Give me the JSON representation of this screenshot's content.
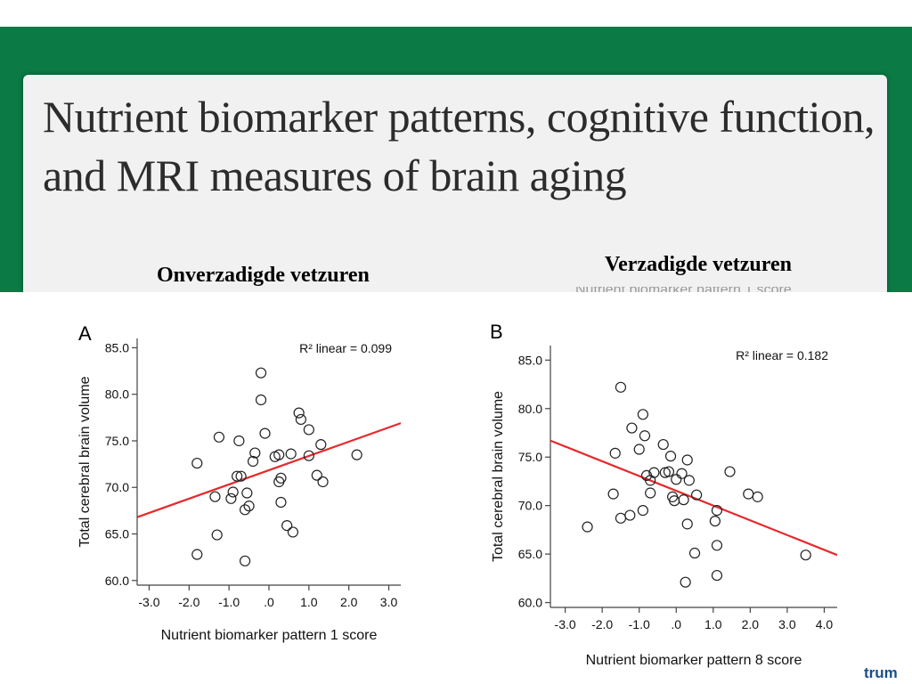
{
  "slide": {
    "title": "Nutrient biomarker patterns, cognitive function, and MRI measures of brain aging",
    "subtitle_left": "Onverzadigde vetzuren",
    "subtitle_right": "Verzadigde vetzuren",
    "ghost_caption": "Nutrient biomarker pattern 1 score",
    "footer_text": "trum"
  },
  "colors": {
    "band": "#0c7a45",
    "regression": "#e8272a",
    "footer": "#1b4e8a"
  },
  "chart_data": [
    {
      "type": "scatter",
      "panel_label": "A",
      "r2_text": "R² linear = 0.099",
      "xlabel": "Nutrient biomarker pattern 1 score",
      "ylabel": "Total cerebral brain volume",
      "xlim": [
        -3.3,
        3.3
      ],
      "ylim": [
        59.5,
        86
      ],
      "x_ticks": [
        -3,
        -2,
        -1,
        0,
        1,
        2,
        3
      ],
      "x_tick_labels": [
        "-3.0",
        "-2.0",
        "-1.0",
        ".0",
        "1.0",
        "2.0",
        "3.0"
      ],
      "y_ticks": [
        60,
        65,
        70,
        75,
        80,
        85
      ],
      "y_tick_labels": [
        "60.0",
        "65.0",
        "70.0",
        "75.0",
        "80.0",
        "85.0"
      ],
      "regression": {
        "x": [
          -3.3,
          3.3
        ],
        "y": [
          66.8,
          76.9
        ]
      },
      "points": [
        {
          "x": -1.8,
          "y": 72.6
        },
        {
          "x": -1.8,
          "y": 62.8
        },
        {
          "x": -1.35,
          "y": 69.0
        },
        {
          "x": -1.25,
          "y": 75.4
        },
        {
          "x": -1.3,
          "y": 64.9
        },
        {
          "x": -0.9,
          "y": 69.5
        },
        {
          "x": -0.95,
          "y": 68.8
        },
        {
          "x": -0.8,
          "y": 71.2
        },
        {
          "x": -0.7,
          "y": 71.2
        },
        {
          "x": -0.75,
          "y": 75.0
        },
        {
          "x": -0.6,
          "y": 67.6
        },
        {
          "x": -0.55,
          "y": 69.4
        },
        {
          "x": -0.5,
          "y": 68.0
        },
        {
          "x": -0.6,
          "y": 62.1
        },
        {
          "x": -0.4,
          "y": 72.8
        },
        {
          "x": -0.35,
          "y": 73.7
        },
        {
          "x": -0.2,
          "y": 82.3
        },
        {
          "x": -0.2,
          "y": 79.4
        },
        {
          "x": -0.1,
          "y": 75.8
        },
        {
          "x": 0.15,
          "y": 73.3
        },
        {
          "x": 0.25,
          "y": 73.5
        },
        {
          "x": 0.3,
          "y": 71.0
        },
        {
          "x": 0.25,
          "y": 70.6
        },
        {
          "x": 0.3,
          "y": 68.4
        },
        {
          "x": 0.45,
          "y": 65.9
        },
        {
          "x": 0.6,
          "y": 65.2
        },
        {
          "x": 0.55,
          "y": 73.6
        },
        {
          "x": 0.75,
          "y": 78.0
        },
        {
          "x": 0.8,
          "y": 77.3
        },
        {
          "x": 1.0,
          "y": 76.2
        },
        {
          "x": 1.0,
          "y": 73.4
        },
        {
          "x": 1.2,
          "y": 71.3
        },
        {
          "x": 1.3,
          "y": 74.6
        },
        {
          "x": 1.35,
          "y": 70.6
        },
        {
          "x": 2.2,
          "y": 73.5
        }
      ]
    },
    {
      "type": "scatter",
      "panel_label": "B",
      "r2_text": "R² linear = 0.182",
      "xlabel": "Nutrient biomarker pattern 8 score",
      "ylabel": "Total cerebral brain volume",
      "xlim": [
        -3.4,
        4.35
      ],
      "ylim": [
        59.5,
        86.5
      ],
      "x_ticks": [
        -3,
        -2,
        -1,
        0,
        1,
        2,
        3,
        4
      ],
      "x_tick_labels": [
        "-3.0",
        "-2.0",
        "-1.0",
        ".0",
        "1.0",
        "2.0",
        "3.0",
        "4.0"
      ],
      "y_ticks": [
        60,
        65,
        70,
        75,
        80,
        85
      ],
      "y_tick_labels": [
        "60.0",
        "65.0",
        "70.0",
        "75.0",
        "80.0",
        "85.0"
      ],
      "regression": {
        "x": [
          -3.4,
          4.35
        ],
        "y": [
          76.7,
          64.9
        ]
      },
      "points": [
        {
          "x": -2.4,
          "y": 67.8
        },
        {
          "x": -1.7,
          "y": 71.2
        },
        {
          "x": -1.65,
          "y": 75.4
        },
        {
          "x": -1.5,
          "y": 68.7
        },
        {
          "x": -1.5,
          "y": 82.2
        },
        {
          "x": -1.25,
          "y": 69.0
        },
        {
          "x": -1.2,
          "y": 78.0
        },
        {
          "x": -1.0,
          "y": 75.8
        },
        {
          "x": -0.9,
          "y": 79.4
        },
        {
          "x": -0.85,
          "y": 77.2
        },
        {
          "x": -0.9,
          "y": 69.5
        },
        {
          "x": -0.8,
          "y": 73.1
        },
        {
          "x": -0.7,
          "y": 71.3
        },
        {
          "x": -0.6,
          "y": 73.4
        },
        {
          "x": -0.7,
          "y": 72.6
        },
        {
          "x": -0.35,
          "y": 76.3
        },
        {
          "x": -0.3,
          "y": 73.4
        },
        {
          "x": -0.2,
          "y": 73.5
        },
        {
          "x": -0.15,
          "y": 75.1
        },
        {
          "x": -0.1,
          "y": 70.9
        },
        {
          "x": -0.05,
          "y": 70.5
        },
        {
          "x": 0.0,
          "y": 72.7
        },
        {
          "x": 0.15,
          "y": 73.3
        },
        {
          "x": 0.2,
          "y": 70.6
        },
        {
          "x": 0.3,
          "y": 74.7
        },
        {
          "x": 0.35,
          "y": 72.6
        },
        {
          "x": 0.3,
          "y": 68.1
        },
        {
          "x": 0.25,
          "y": 62.1
        },
        {
          "x": 0.55,
          "y": 71.1
        },
        {
          "x": 0.5,
          "y": 65.1
        },
        {
          "x": 1.1,
          "y": 69.5
        },
        {
          "x": 1.05,
          "y": 68.4
        },
        {
          "x": 1.1,
          "y": 65.9
        },
        {
          "x": 1.1,
          "y": 62.8
        },
        {
          "x": 1.45,
          "y": 73.5
        },
        {
          "x": 1.95,
          "y": 71.2
        },
        {
          "x": 2.2,
          "y": 70.9
        },
        {
          "x": 3.5,
          "y": 64.9
        }
      ]
    }
  ]
}
